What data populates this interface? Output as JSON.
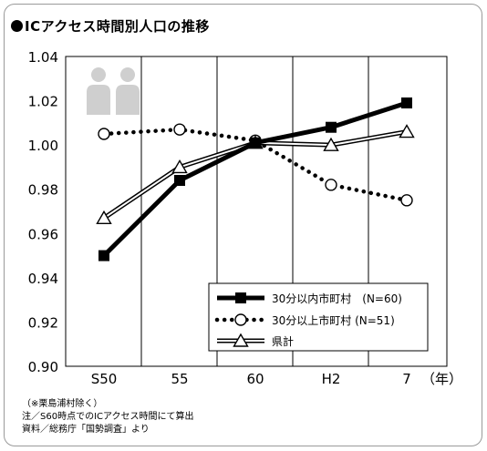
{
  "title": "ICアクセス時間別人口の推移",
  "chart_data": {
    "type": "line",
    "categories": [
      "S50",
      "55",
      "60",
      "H2",
      "7"
    ],
    "x_unit": "（年）",
    "ylim": [
      0.9,
      1.04
    ],
    "yticks": [
      "0.90",
      "0.92",
      "0.94",
      "0.96",
      "0.98",
      "1.00",
      "1.02",
      "1.04"
    ],
    "grid": "vertical",
    "legend_position": "bottom-right",
    "series": [
      {
        "name": "30分以内市町村　(N=60)",
        "values": [
          0.95,
          0.984,
          1.001,
          1.008,
          1.019
        ],
        "style": "thick-solid",
        "marker": "filled-square",
        "color": "#000000"
      },
      {
        "name": "30分以上市町村 (N=51)",
        "values": [
          1.005,
          1.007,
          1.002,
          0.982,
          0.975
        ],
        "style": "dotted",
        "marker": "open-circle",
        "color": "#000000"
      },
      {
        "name": "県計",
        "values": [
          0.967,
          0.99,
          1.001,
          1.0,
          1.006
        ],
        "style": "double-line",
        "marker": "open-triangle",
        "color": "#000000"
      }
    ]
  },
  "footnotes": [
    "（※栗島浦村除く）",
    "注／S60時点でのICアクセス時間にて算出",
    "資料／総務庁「国勢調査」より"
  ]
}
